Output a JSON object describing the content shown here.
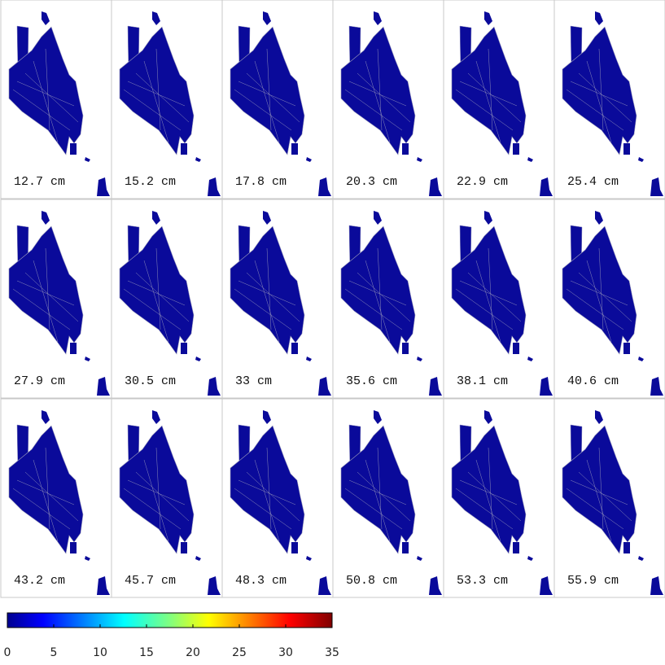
{
  "panels": [
    "12.7 cm",
    "15.2 cm",
    "17.8 cm",
    "20.3 cm",
    "22.9 cm",
    "25.4 cm",
    "27.9 cm",
    "30.5 cm",
    "33 cm",
    "35.6 cm",
    "38.1 cm",
    "40.6 cm",
    "43.2 cm",
    "45.7 cm",
    "48.3 cm",
    "50.8 cm",
    "53.3 cm",
    "55.9 cm"
  ],
  "colorbar": {
    "lim": [
      0,
      35
    ],
    "ticks": [
      0,
      5,
      10,
      15,
      20,
      25,
      30,
      35
    ]
  }
}
